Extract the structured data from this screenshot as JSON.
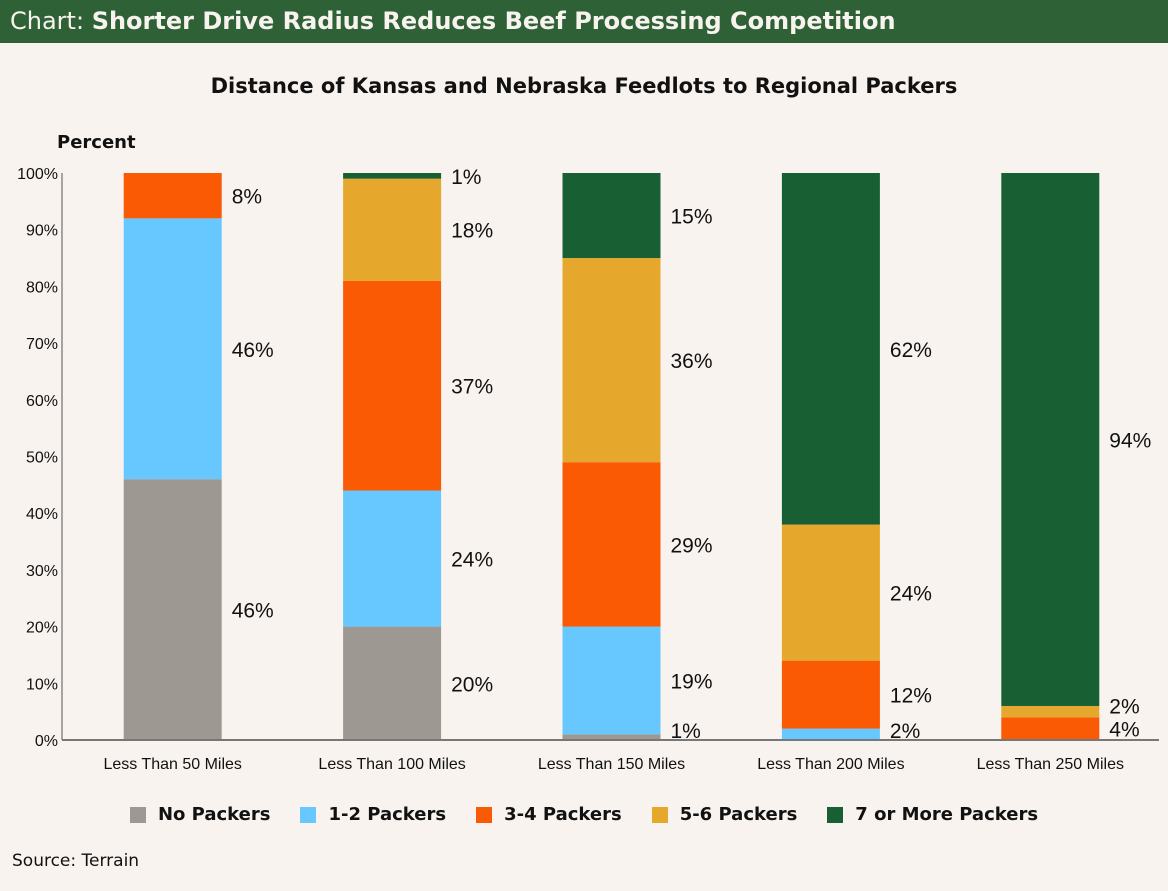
{
  "header": {
    "prefix": "Chart:",
    "title": "Shorter Drive Radius Reduces Beef Processing Competition"
  },
  "source": "Source: Terrain",
  "chart_data": {
    "type": "bar",
    "stacked": true,
    "title": "Distance of Kansas and Nebraska Feedlots to Regional Packers",
    "ylabel": "Percent",
    "xlabel": "",
    "ylim": [
      0,
      100
    ],
    "yticks": [
      "0%",
      "10%",
      "20%",
      "30%",
      "40%",
      "50%",
      "60%",
      "70%",
      "80%",
      "90%",
      "100%"
    ],
    "grid": false,
    "legend_position": "bottom",
    "categories": [
      "Less Than 50 Miles",
      "Less Than 100 Miles",
      "Less Than 150 Miles",
      "Less Than 200 Miles",
      "Less Than 250 Miles"
    ],
    "series": [
      {
        "name": "No Packers",
        "color": "#9e9893",
        "values": [
          46,
          20,
          1,
          0,
          0
        ]
      },
      {
        "name": "1-2 Packers",
        "color": "#66c8fe",
        "values": [
          46,
          24,
          19,
          2,
          0
        ]
      },
      {
        "name": "3-4 Packers",
        "color": "#fb5a04",
        "values": [
          8,
          37,
          29,
          12,
          4
        ]
      },
      {
        "name": "5-6 Packers",
        "color": "#e6a82c",
        "values": [
          0,
          18,
          36,
          24,
          2
        ]
      },
      {
        "name": "7 or More Packers",
        "color": "#186034",
        "values": [
          0,
          1,
          15,
          62,
          94
        ]
      }
    ]
  }
}
